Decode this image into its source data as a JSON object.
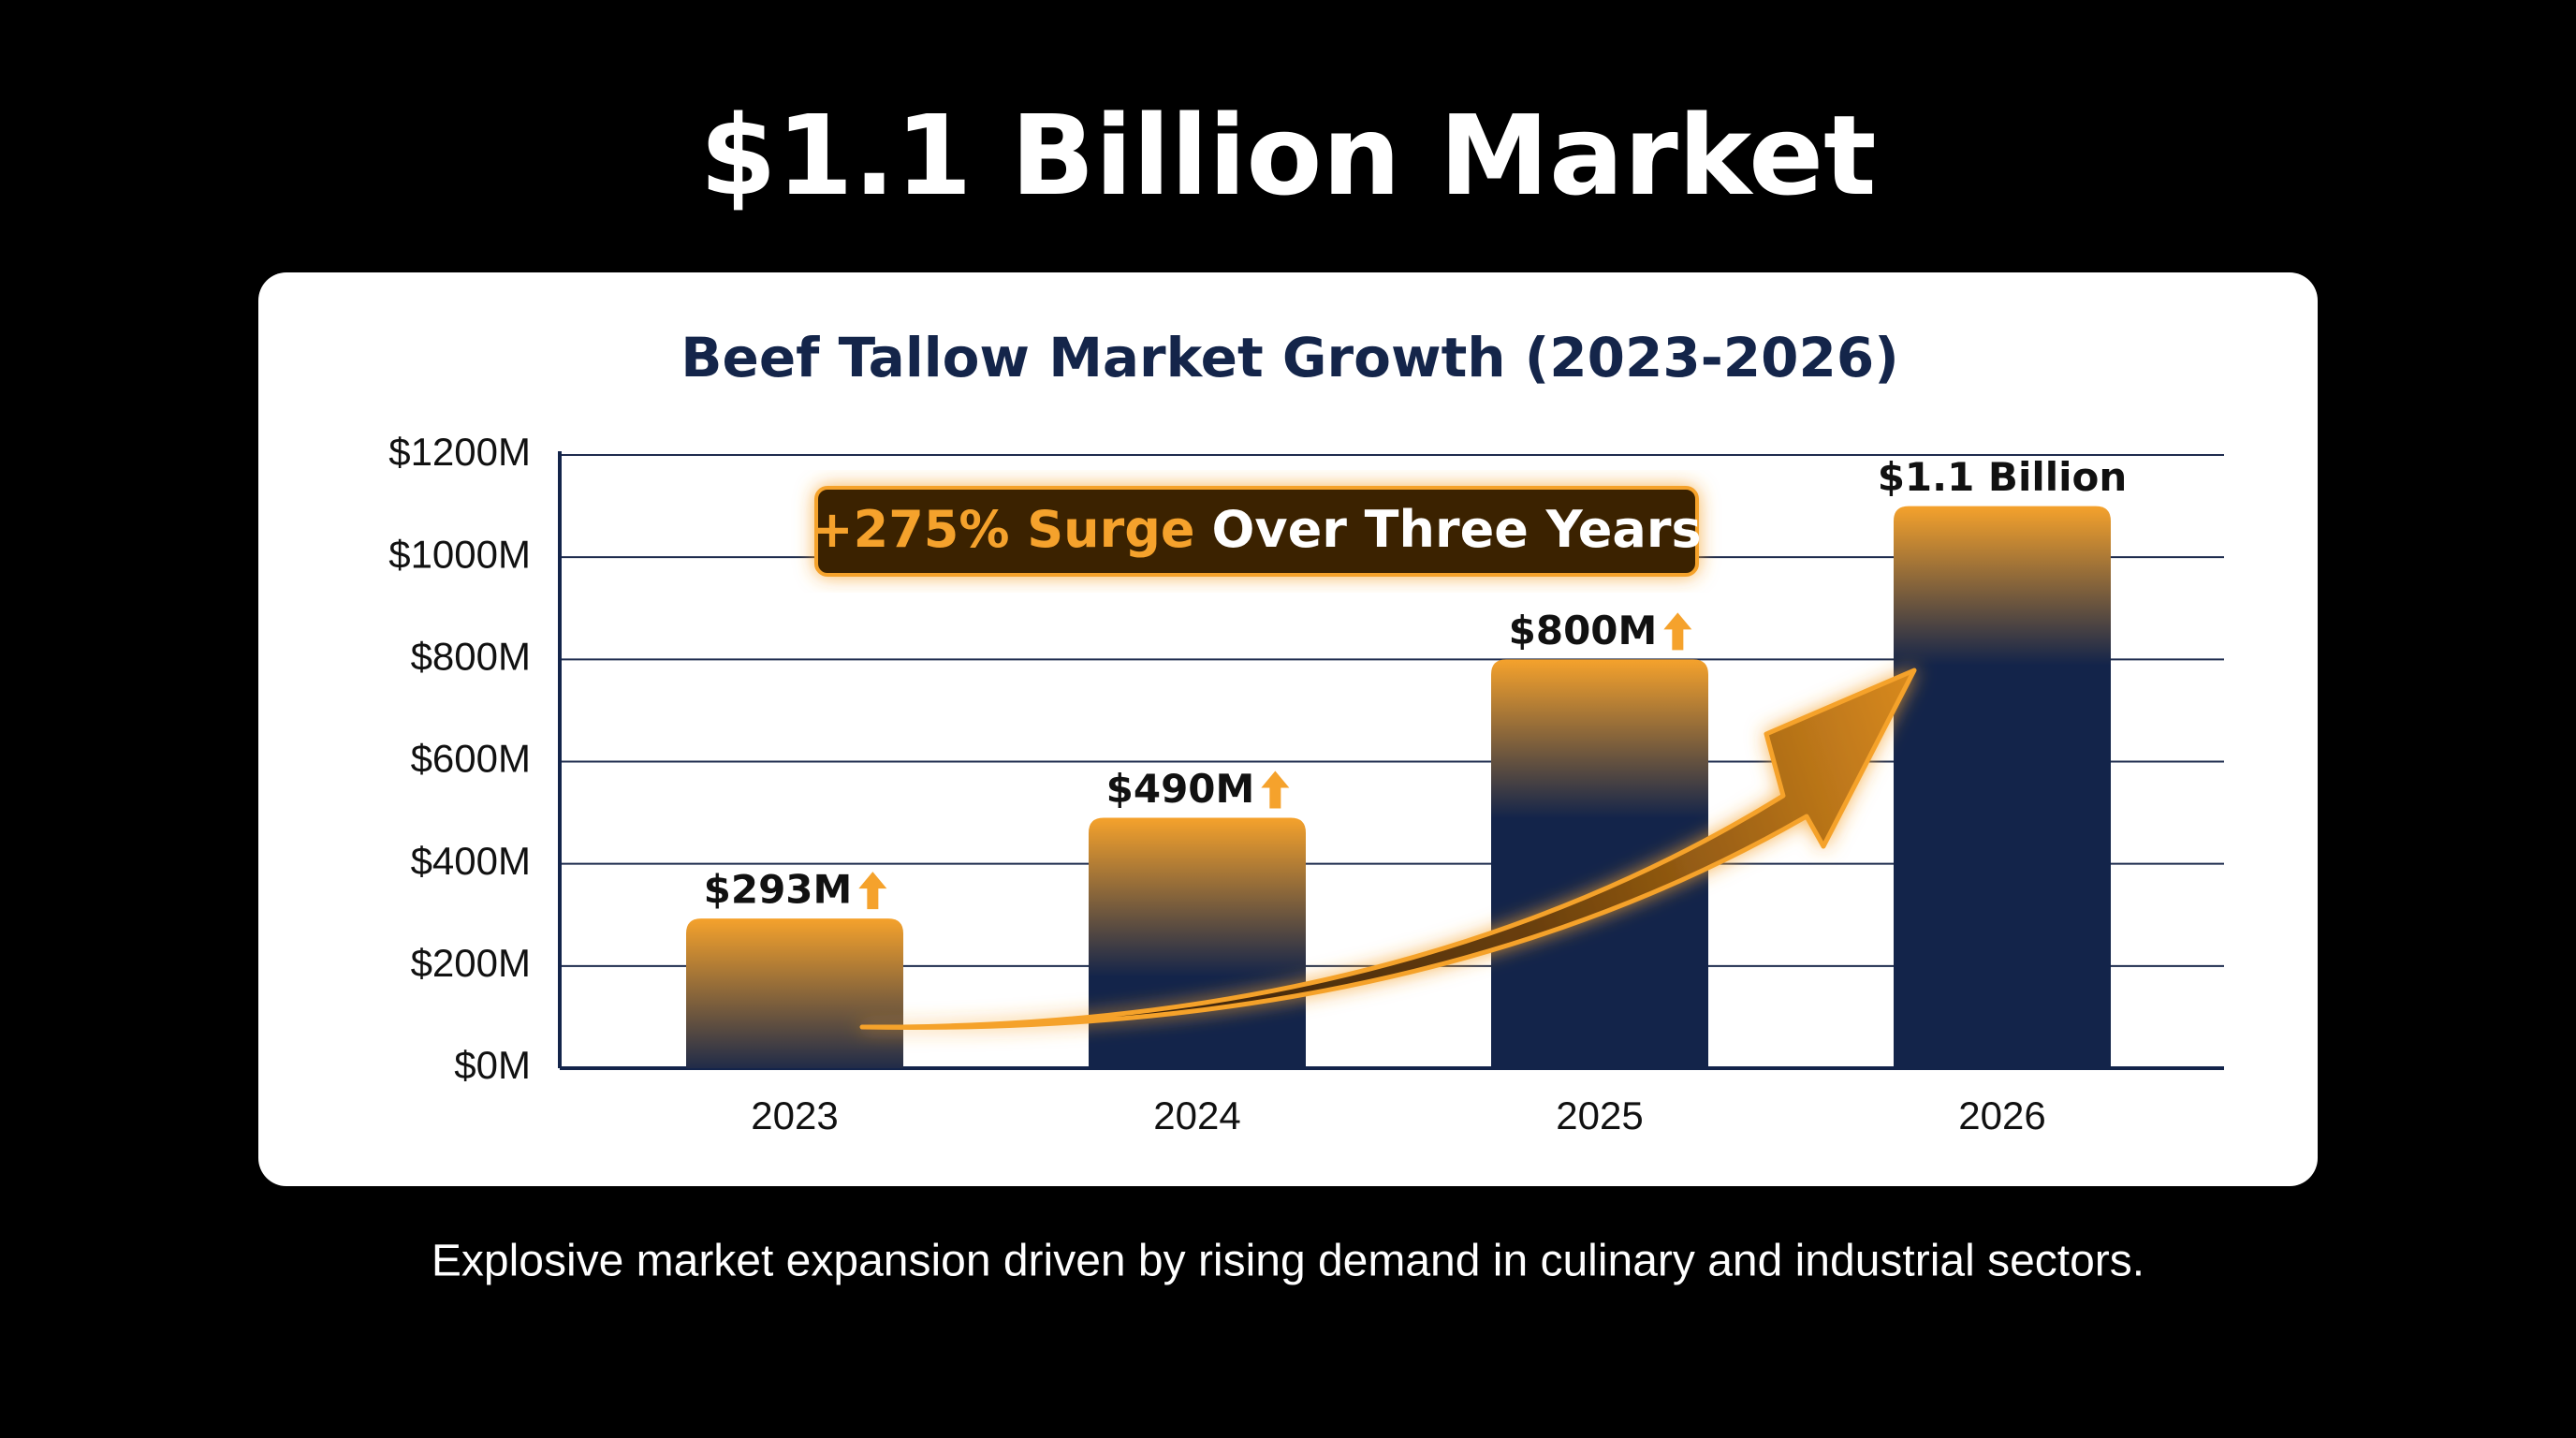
{
  "chart_data": {
    "type": "bar",
    "page_title": "$1.1 Billion Market",
    "title": "Beef Tallow Market Growth (2023-2026)",
    "annotation": {
      "highlight": "+275% Surge",
      "text": "Over Three Years"
    },
    "footer": "Explosive market expansion driven by rising demand in culinary and industrial sectors.",
    "categories": [
      "2023",
      "2024",
      "2025",
      "2026"
    ],
    "values": [
      293,
      490,
      800,
      1100
    ],
    "value_labels": [
      "$293M",
      "$490M",
      "$800M",
      "$1.1 Billion"
    ],
    "color": "#13244a",
    "highlight_color": "#f5a22c",
    "ylim": [
      0,
      1200
    ],
    "yticks": [
      {
        "value": 0,
        "label": "$0M"
      },
      {
        "value": 200,
        "label": "$200M"
      },
      {
        "value": 400,
        "label": "$400M"
      },
      {
        "value": 600,
        "label": "$600M"
      },
      {
        "value": 800,
        "label": "$800M"
      },
      {
        "value": 1000,
        "label": "$1000M"
      },
      {
        "value": 1200,
        "label": "$1200M"
      }
    ],
    "grid": true
  }
}
